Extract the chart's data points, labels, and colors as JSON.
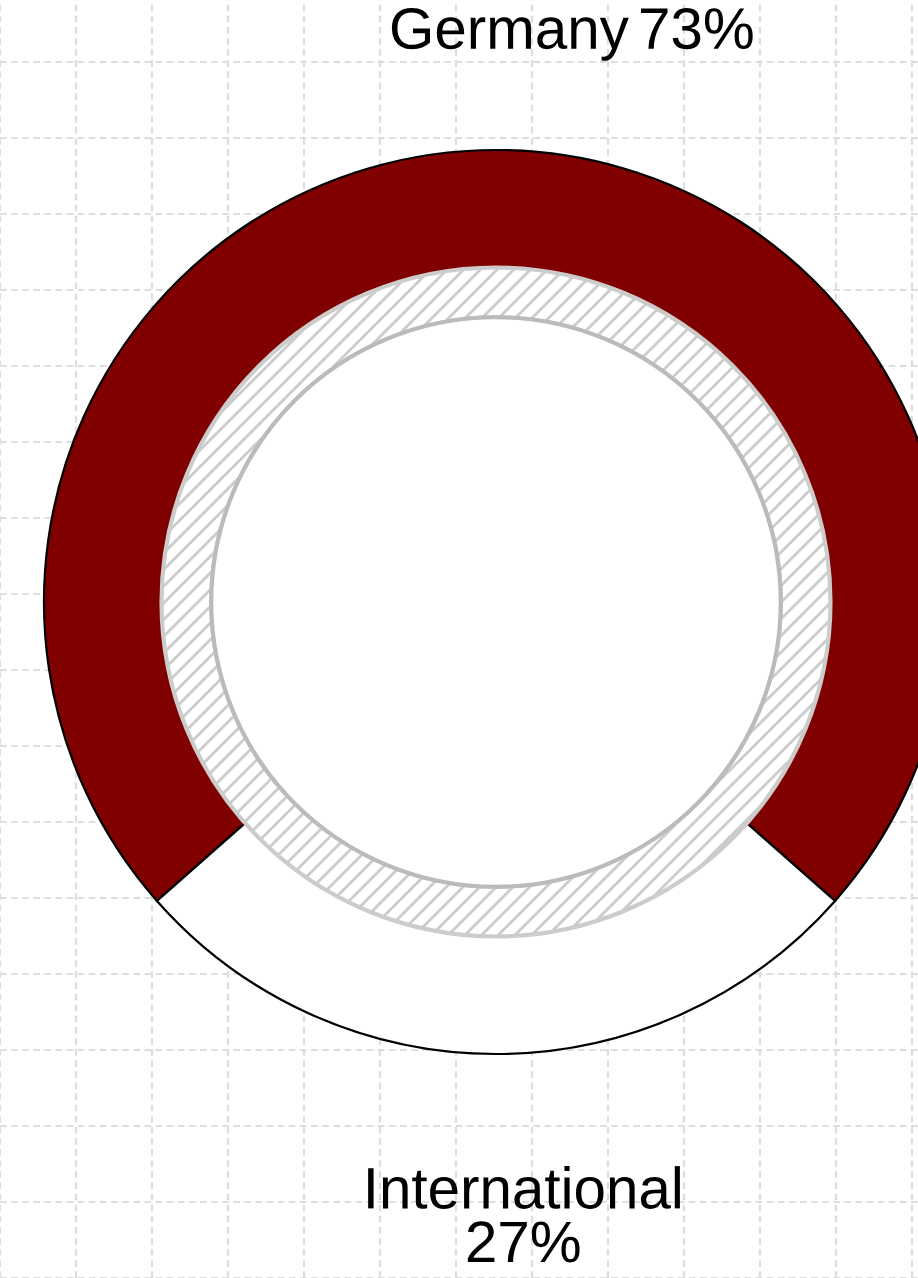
{
  "chart_data": {
    "type": "donut",
    "categories": [
      "Germany",
      "International"
    ],
    "values": [
      73,
      27
    ],
    "colors": [
      "#800000",
      "#ffffff"
    ],
    "value_labels": [
      "73%",
      "27%"
    ],
    "grid": true
  }
}
